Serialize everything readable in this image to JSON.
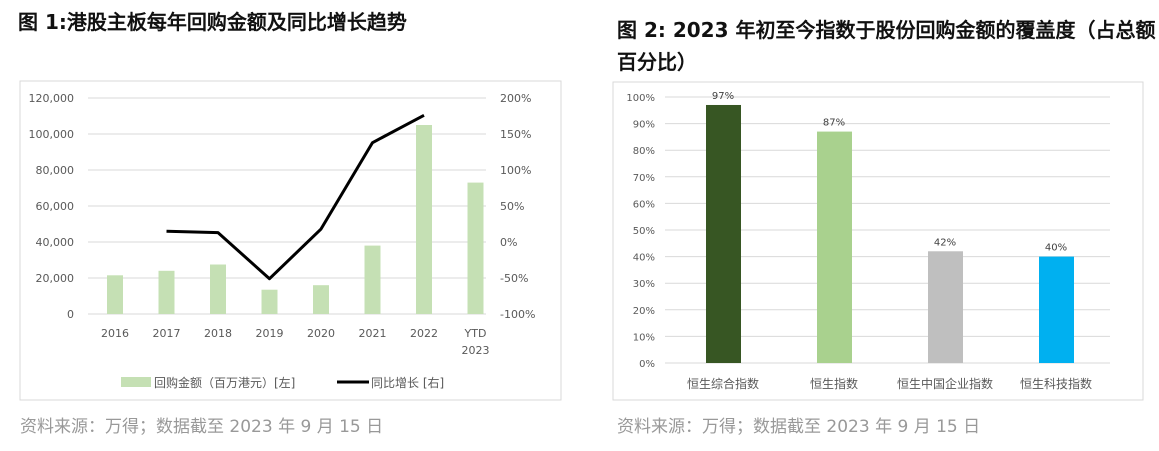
{
  "left": {
    "title": "图 1:港股主板每年回购金额及同比增长趋势",
    "source": "资料来源：万得；数据截至 2023 年 9 月 15 日"
  },
  "right": {
    "title": "图  2: 2023  年初至今指数于股份回购金额的覆盖度（占总额百分比）",
    "source": "资料来源：万得；数据截至 2023 年 9 月 15 日"
  },
  "chart_data": [
    {
      "type": "bar+line",
      "categories": [
        "2016",
        "2017",
        "2018",
        "2019",
        "2020",
        "2021",
        "2022",
        "YTD 2023"
      ],
      "series": [
        {
          "name": "回购金额（百万港元）[左]",
          "type": "bar",
          "axis": "left",
          "color": "#c5e0b4",
          "values": [
            21500,
            24000,
            27500,
            13500,
            16000,
            38000,
            105000,
            73000
          ]
        },
        {
          "name": "同比增长 [右]",
          "type": "line",
          "axis": "right",
          "color": "#000000",
          "values": [
            null,
            15,
            13,
            -51,
            18,
            138,
            176,
            null
          ]
        }
      ],
      "yleft": {
        "ylim": [
          0,
          120000
        ],
        "ticks": [
          "0",
          "20,000",
          "40,000",
          "60,000",
          "80,000",
          "100,000",
          "120,000"
        ]
      },
      "yright": {
        "ylim": [
          -100,
          200
        ],
        "ticks": [
          "-100%",
          "-50%",
          "0%",
          "50%",
          "100%",
          "150%",
          "200%"
        ]
      },
      "legend": "bottom"
    },
    {
      "type": "bar",
      "categories": [
        "恒生综合指数",
        "恒生指数",
        "恒生中国企业指数",
        "恒生科技指数"
      ],
      "values": [
        97,
        87,
        42,
        40
      ],
      "labels": [
        "97%",
        "87%",
        "42%",
        "40%"
      ],
      "colors": [
        "#375623",
        "#a9d18e",
        "#bfbfbf",
        "#00b0f0"
      ],
      "ylim": [
        0,
        100
      ],
      "ticks": [
        "0%",
        "10%",
        "20%",
        "30%",
        "40%",
        "50%",
        "60%",
        "70%",
        "80%",
        "90%",
        "100%"
      ]
    }
  ]
}
